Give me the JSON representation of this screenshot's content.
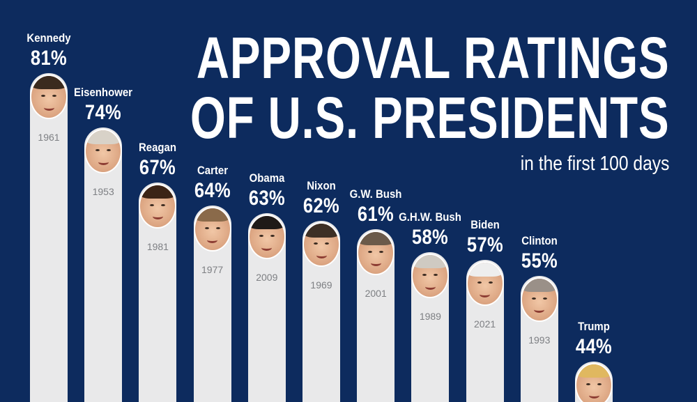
{
  "title_lines": [
    "APPROVAL RATINGS",
    "OF U.S. PRESIDENTS"
  ],
  "subtitle": "in the first 100 days",
  "colors": {
    "background": "#0d2b5e",
    "bar": "#e9e9ea",
    "label_text": "#ffffff",
    "year_text": "#7d7f83"
  },
  "chart_data": {
    "type": "bar",
    "title": "APPROVAL RATINGS OF U.S. PRESIDENTS",
    "subtitle": "in the first 100 days",
    "unit": "%",
    "categories": [
      "Kennedy",
      "Eisenhower",
      "Reagan",
      "Carter",
      "Obama",
      "Nixon",
      "G.W. Bush",
      "G.H.W. Bush",
      "Biden",
      "Clinton",
      "Trump"
    ],
    "values": [
      81,
      74,
      67,
      64,
      63,
      62,
      61,
      58,
      57,
      55,
      44
    ],
    "labels": [
      "81%",
      "74%",
      "67%",
      "64%",
      "63%",
      "62%",
      "61%",
      "58%",
      "57%",
      "55%",
      "44%"
    ],
    "years": [
      "1961",
      "1953",
      "1981",
      "1977",
      "2009",
      "1969",
      "2001",
      "1989",
      "2021",
      "1993",
      ""
    ],
    "hair_colors": [
      "#3a2a1e",
      "#d8d2c8",
      "#3b2416",
      "#8a6a4a",
      "#1f1a17",
      "#3d2f25",
      "#6b5a4a",
      "#cfcac2",
      "#eeeeee",
      "#9a9088",
      "#e0b860"
    ],
    "xlabel": "",
    "ylabel": "",
    "grid": false,
    "legend": "none"
  }
}
